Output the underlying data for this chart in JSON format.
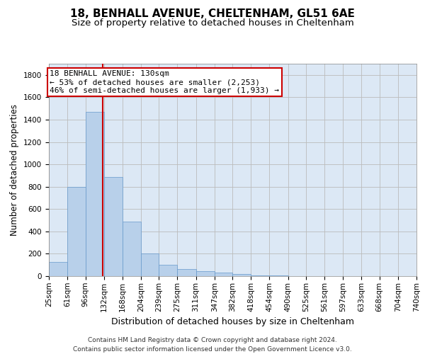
{
  "title1": "18, BENHALL AVENUE, CHELTENHAM, GL51 6AE",
  "title2": "Size of property relative to detached houses in Cheltenham",
  "xlabel": "Distribution of detached houses by size in Cheltenham",
  "ylabel": "Number of detached properties",
  "bin_edges": [
    25,
    61,
    96,
    132,
    168,
    204,
    239,
    275,
    311,
    347,
    382,
    418,
    454,
    490,
    525,
    561,
    597,
    633,
    668,
    704,
    740
  ],
  "bar_heights": [
    125,
    800,
    1470,
    885,
    490,
    205,
    103,
    65,
    42,
    32,
    22,
    5,
    5,
    3,
    2,
    1,
    1,
    1,
    1,
    1
  ],
  "bar_color": "#b8d0ea",
  "bar_edge_color": "#6699cc",
  "property_size": 130,
  "vline_color": "#cc0000",
  "annotation_line1": "18 BENHALL AVENUE: 130sqm",
  "annotation_line2": "← 53% of detached houses are smaller (2,253)",
  "annotation_line3": "46% of semi-detached houses are larger (1,933) →",
  "annotation_box_color": "#ffffff",
  "annotation_box_edge": "#cc0000",
  "ylim": [
    0,
    1900
  ],
  "yticks": [
    0,
    200,
    400,
    600,
    800,
    1000,
    1200,
    1400,
    1600,
    1800
  ],
  "grid_color": "#bbbbbb",
  "bg_color": "#dce8f5",
  "footer": "Contains HM Land Registry data © Crown copyright and database right 2024.\nContains public sector information licensed under the Open Government Licence v3.0.",
  "title1_fontsize": 11,
  "title2_fontsize": 9.5,
  "xlabel_fontsize": 9,
  "ylabel_fontsize": 8.5,
  "tick_fontsize": 7.5,
  "annotation_fontsize": 8,
  "footer_fontsize": 6.5
}
